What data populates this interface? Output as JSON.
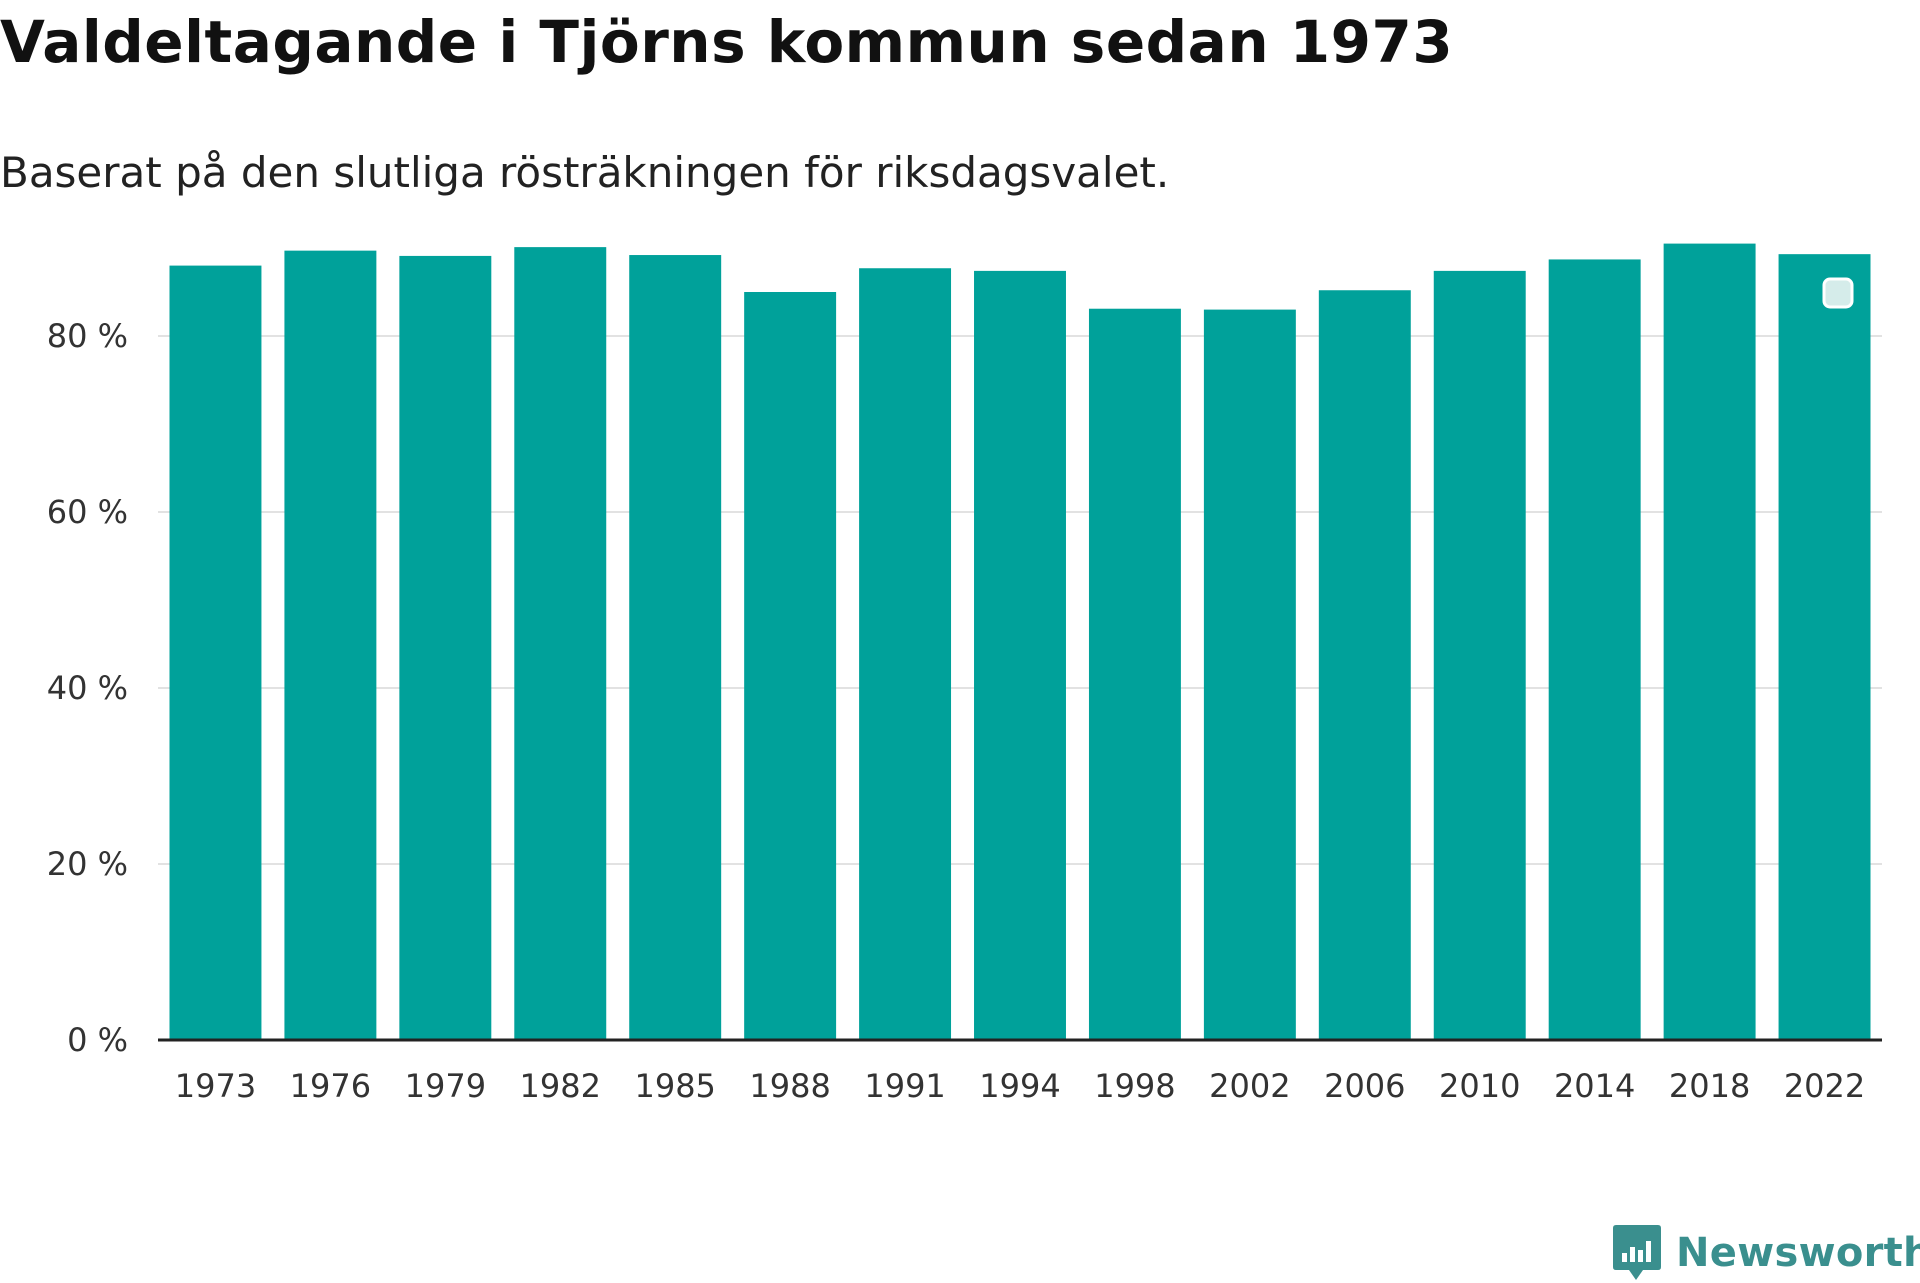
{
  "chart_data": {
    "type": "bar",
    "title": "Valdeltagande i Tjörns kommun sedan 1973",
    "subtitle": "Baserat på den slutliga rösträkningen för riksdagsvalet.",
    "categories": [
      "1973",
      "1976",
      "1979",
      "1982",
      "1985",
      "1988",
      "1991",
      "1994",
      "1998",
      "2002",
      "2006",
      "2010",
      "2014",
      "2018",
      "2022"
    ],
    "values": [
      88.0,
      89.7,
      89.1,
      90.1,
      89.2,
      85.0,
      87.7,
      87.4,
      83.1,
      83.0,
      85.2,
      87.4,
      88.7,
      90.5,
      89.3
    ],
    "ylim": [
      0,
      90
    ],
    "yticks": [
      0,
      20,
      40,
      60,
      80
    ],
    "ytick_suffix": " %",
    "xlabel": "",
    "ylabel": "",
    "grid": true,
    "bar_color": "#00a19a",
    "gridline_color": "#e2e2e2",
    "axis_color": "#222222"
  },
  "brand": {
    "name": "Newsworthy",
    "color": "#3a8f8e"
  }
}
